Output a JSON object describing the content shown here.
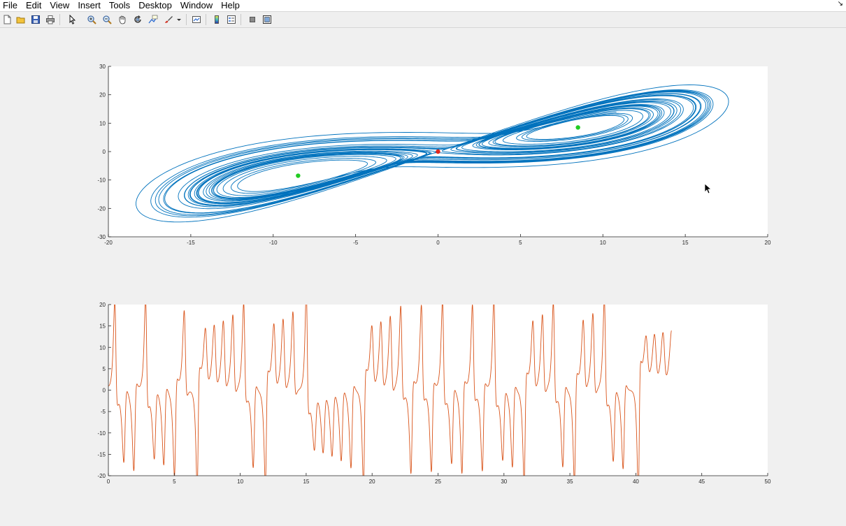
{
  "menu": {
    "items": [
      "File",
      "Edit",
      "View",
      "Insert",
      "Tools",
      "Desktop",
      "Window",
      "Help"
    ],
    "corner": "↘"
  },
  "toolbar": {
    "buttons": [
      {
        "name": "new-figure-icon"
      },
      {
        "name": "open-file-icon"
      },
      {
        "name": "save-icon"
      },
      {
        "name": "print-icon"
      },
      {
        "name": "select-pointer-icon"
      },
      {
        "name": "zoom-in-icon"
      },
      {
        "name": "zoom-out-icon"
      },
      {
        "name": "pan-hand-icon"
      },
      {
        "name": "rotate-3d-icon"
      },
      {
        "name": "data-cursor-icon"
      },
      {
        "name": "brush-icon"
      },
      {
        "name": "brush-dropdown-icon"
      },
      {
        "name": "link-plot-icon"
      },
      {
        "name": "colorbar-icon"
      },
      {
        "name": "legend-icon"
      },
      {
        "name": "hide-plot-tools-icon"
      },
      {
        "name": "show-plot-tools-icon"
      }
    ]
  },
  "colors": {
    "trajectory": "#0072bd",
    "timeseries": "#d95319",
    "equilibrium_origin": "#e0281e",
    "equilibrium_side": "#22cc22",
    "axes_bg": "#ffffff",
    "axis": "#262626"
  },
  "chart_data": [
    {
      "type": "line",
      "title": "",
      "xlabel": "",
      "ylabel": "",
      "xlim": [
        -20,
        20
      ],
      "ylim": [
        -30,
        30
      ],
      "xticks": [
        -20,
        -15,
        -10,
        -5,
        0,
        5,
        10,
        15,
        20
      ],
      "yticks": [
        -30,
        -20,
        -10,
        0,
        10,
        20,
        30
      ],
      "grid": false,
      "series": [
        {
          "kind": "lorenz-trajectory",
          "projection": "x-y",
          "sigma": 10,
          "rho": 28,
          "beta": 2.6667,
          "initial": [
            0,
            1,
            20
          ],
          "t_end": 42.7
        }
      ],
      "points": [
        {
          "x": 0,
          "y": 0,
          "color": "equilibrium_origin"
        },
        {
          "x": 8.49,
          "y": 8.49,
          "color": "equilibrium_side"
        },
        {
          "x": -8.49,
          "y": -8.49,
          "color": "equilibrium_side"
        }
      ]
    },
    {
      "type": "line",
      "title": "",
      "xlabel": "",
      "ylabel": "",
      "xlim": [
        0,
        50
      ],
      "ylim": [
        -20,
        20
      ],
      "xticks": [
        0,
        5,
        10,
        15,
        20,
        25,
        30,
        35,
        40,
        45,
        50
      ],
      "yticks": [
        -20,
        -15,
        -10,
        -5,
        0,
        5,
        10,
        15,
        20
      ],
      "grid": false,
      "series": [
        {
          "kind": "lorenz-component-vs-time",
          "component": "y",
          "t_range": [
            0,
            42.7
          ]
        }
      ]
    }
  ]
}
